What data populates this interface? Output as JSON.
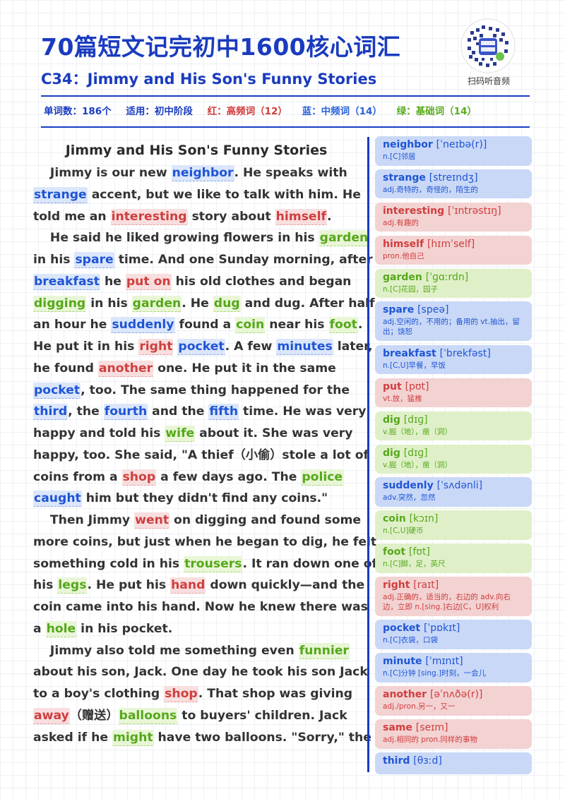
{
  "header": {
    "title": "70篇短文记完初中1600核心词汇",
    "subtitle": "C34：Jimmy and His Son's Funny Stories",
    "qr_caption": "扫码听音频",
    "meta": {
      "word_count": "单词数：186个",
      "level": "适用：初中阶段",
      "high_freq": "红：高频词（12）",
      "mid_freq": "蓝：中频词（14）",
      "basic": "绿：基础词（14）"
    }
  },
  "colors": {
    "blue": "#1f55d4",
    "red": "#cf3e3e",
    "green": "#56a81a",
    "title": "#1a3bbf"
  },
  "article": {
    "title": "Jimmy and His Son's Funny Stories",
    "lines": [
      [
        {
          "t": "    Jimmy is our new "
        },
        {
          "t": "neighbor",
          "c": "b"
        },
        {
          "t": ". He speaks with"
        }
      ],
      [
        {
          "t": "strange",
          "c": "b"
        },
        {
          "t": " accent, but we like to talk with him. He"
        }
      ],
      [
        {
          "t": "told me an "
        },
        {
          "t": "interesting",
          "c": "r"
        },
        {
          "t": " story about "
        },
        {
          "t": "himself",
          "c": "r"
        },
        {
          "t": "."
        }
      ],
      [
        {
          "t": "    He said he liked growing flowers in his "
        },
        {
          "t": "garden",
          "c": "g"
        }
      ],
      [
        {
          "t": "in his "
        },
        {
          "t": "spare",
          "c": "b"
        },
        {
          "t": " time. And one Sunday morning, after"
        }
      ],
      [
        {
          "t": "breakfast",
          "c": "b"
        },
        {
          "t": " he "
        },
        {
          "t": "put on",
          "c": "r"
        },
        {
          "t": " his old clothes and began"
        }
      ],
      [
        {
          "t": "digging",
          "c": "g"
        },
        {
          "t": " in his "
        },
        {
          "t": "garden",
          "c": "g"
        },
        {
          "t": ". He "
        },
        {
          "t": "dug",
          "c": "g"
        },
        {
          "t": " and dug. After half"
        }
      ],
      [
        {
          "t": "an hour he "
        },
        {
          "t": "suddenly",
          "c": "b"
        },
        {
          "t": " found a "
        },
        {
          "t": "coin",
          "c": "g"
        },
        {
          "t": " near his "
        },
        {
          "t": "foot",
          "c": "g"
        },
        {
          "t": "."
        }
      ],
      [
        {
          "t": "He put it in his "
        },
        {
          "t": "right",
          "c": "r"
        },
        {
          "t": " "
        },
        {
          "t": "pocket",
          "c": "b"
        },
        {
          "t": ". A few "
        },
        {
          "t": "minutes",
          "c": "b"
        },
        {
          "t": " later,"
        }
      ],
      [
        {
          "t": "he found "
        },
        {
          "t": "another",
          "c": "r"
        },
        {
          "t": " one. He put it in the same"
        }
      ],
      [
        {
          "t": "pocket",
          "c": "b"
        },
        {
          "t": ", too. The same thing happened for the"
        }
      ],
      [
        {
          "t": "third",
          "c": "b"
        },
        {
          "t": ", the "
        },
        {
          "t": "fourth",
          "c": "b"
        },
        {
          "t": " and the "
        },
        {
          "t": "fifth",
          "c": "b"
        },
        {
          "t": " time. He was very"
        }
      ],
      [
        {
          "t": "happy and told his "
        },
        {
          "t": "wife",
          "c": "g"
        },
        {
          "t": " about it. She was very"
        }
      ],
      [
        {
          "t": "happy, too. She said, \"A thief（小偷）stole a lot of"
        }
      ],
      [
        {
          "t": "coins from a "
        },
        {
          "t": "shop",
          "c": "r"
        },
        {
          "t": " a few days ago. The "
        },
        {
          "t": "police",
          "c": "g"
        }
      ],
      [
        {
          "t": "caught",
          "c": "b"
        },
        {
          "t": " him but they didn't find any coins.\""
        }
      ],
      [
        {
          "t": "    Then Jimmy "
        },
        {
          "t": "went",
          "c": "r"
        },
        {
          "t": " on digging and found some"
        }
      ],
      [
        {
          "t": "more coins, but just when he began to dig, he felt"
        }
      ],
      [
        {
          "t": "something cold in his "
        },
        {
          "t": "trousers",
          "c": "g"
        },
        {
          "t": ". It ran down one of"
        }
      ],
      [
        {
          "t": "his "
        },
        {
          "t": "legs",
          "c": "g"
        },
        {
          "t": ". He put his "
        },
        {
          "t": "hand",
          "c": "r"
        },
        {
          "t": " down quickly—and the"
        }
      ],
      [
        {
          "t": "coin came into his hand. Now he knew there was"
        }
      ],
      [
        {
          "t": "a "
        },
        {
          "t": "hole",
          "c": "g"
        },
        {
          "t": " in his pocket."
        }
      ],
      [
        {
          "t": "    Jimmy also told me something even "
        },
        {
          "t": "funnier",
          "c": "g"
        }
      ],
      [
        {
          "t": "about his son, Jack. One day he took his son Jack"
        }
      ],
      [
        {
          "t": "to a boy's clothing "
        },
        {
          "t": "shop",
          "c": "r"
        },
        {
          "t": ". That shop was giving"
        }
      ],
      [
        {
          "t": "away",
          "c": "r"
        },
        {
          "t": "（赠送）"
        },
        {
          "t": "balloons",
          "c": "g"
        },
        {
          "t": " to buyers' children. Jack"
        }
      ],
      [
        {
          "t": "asked if he "
        },
        {
          "t": "might",
          "c": "g"
        },
        {
          "t": " have two balloons. \"Sorry,\" the"
        }
      ]
    ]
  },
  "vocab": [
    {
      "word": "neighbor",
      "phon": "[ˈneɪbə(r)]",
      "def": "n.[C]邻居",
      "c": "b"
    },
    {
      "word": "strange",
      "phon": "[streɪndʒ]",
      "def": "adj.奇特的，奇怪的，陌生的",
      "c": "b"
    },
    {
      "word": "interesting",
      "phon": "[ˈɪntrəstɪŋ]",
      "def": "adj.有趣的",
      "c": "r"
    },
    {
      "word": "himself",
      "phon": "[hɪmˈself]",
      "def": "pron.他自己",
      "c": "r"
    },
    {
      "word": "garden",
      "phon": "[ˈɡɑːrdn]",
      "def": "n.[C]花园，园子",
      "c": "g"
    },
    {
      "word": "spare",
      "phon": "[speə]",
      "def": "adj.空闲的，不用的；备用的 vt.抽出，留出；饶恕",
      "c": "b",
      "size": "tall"
    },
    {
      "word": "breakfast",
      "phon": "[ˈbrekfəst]",
      "def": "n.[C,U]早餐，早饭",
      "c": "b"
    },
    {
      "word": "put",
      "phon": "[pʊt]",
      "def": "vt.放，猛推",
      "c": "r"
    },
    {
      "word": "dig",
      "phon": "[dɪɡ]",
      "def": "v.掘（地），凿（洞）",
      "c": "g"
    },
    {
      "word": "dig",
      "phon": "[dɪɡ]",
      "def": "v.掘（地），凿（洞）",
      "c": "g"
    },
    {
      "word": "suddenly",
      "phon": "[ˈsʌdənli]",
      "def": "adv.突然，忽然",
      "c": "b"
    },
    {
      "word": "coin",
      "phon": "[kɔɪn]",
      "def": "n.[C,U]硬币",
      "c": "g"
    },
    {
      "word": "foot",
      "phon": "[fʊt]",
      "def": "n.[C]脚，足，英尺",
      "c": "g"
    },
    {
      "word": "right",
      "phon": "[raɪt]",
      "def": "adj.正确的，适当的，右边的 adv.向右边，立即 n.[sing.]右边[C，U]权利",
      "c": "r",
      "size": "tall"
    },
    {
      "word": "pocket",
      "phon": "[ˈpɒkɪt]",
      "def": "n.[C]衣袋，口袋",
      "c": "b"
    },
    {
      "word": "minute",
      "phon": "[ˈmɪnɪt]",
      "def": "n.[C]分钟 [sing.]时刻，一会儿",
      "c": "b"
    },
    {
      "word": "another",
      "phon": "[əˈnʌðə(r)]",
      "def": "adj./pron.另一，又一",
      "c": "r"
    },
    {
      "word": "same",
      "phon": "[seɪm]",
      "def": "adj.相同的 pron.同样的事物",
      "c": "r"
    },
    {
      "word": "third",
      "phon": "[θɜːd]",
      "def": "",
      "c": "b",
      "size": "short"
    }
  ]
}
